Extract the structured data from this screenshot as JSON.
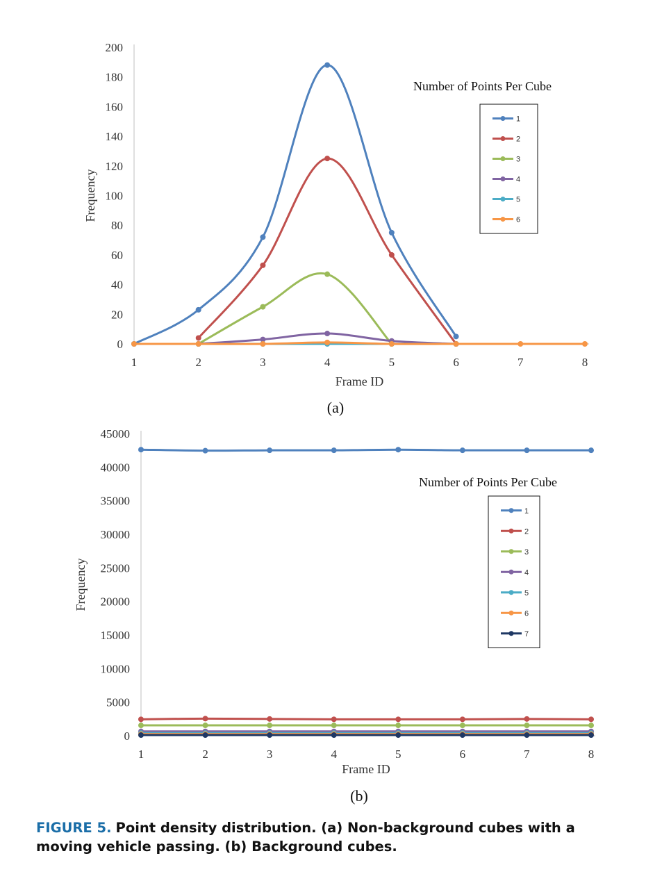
{
  "chart_data": [
    {
      "type": "line",
      "panel_label": "(a)",
      "xlabel": "Frame ID",
      "ylabel": "Frequency",
      "legend_title": "Number of Points Per Cube",
      "legend_position": "top-right",
      "x": [
        1,
        2,
        3,
        4,
        5,
        6,
        7,
        8
      ],
      "ylim": [
        0,
        200
      ],
      "yticks": [
        0,
        20,
        40,
        60,
        80,
        100,
        120,
        140,
        160,
        180,
        200
      ],
      "xticks": [
        1,
        2,
        3,
        4,
        5,
        6,
        7,
        8
      ],
      "grid": false,
      "series": [
        {
          "name": "1",
          "color": "#4f81bd",
          "x": [
            1,
            2,
            3,
            4,
            5,
            6
          ],
          "values": [
            0,
            23,
            72,
            188,
            75,
            5
          ]
        },
        {
          "name": "2",
          "color": "#c0504d",
          "x": [
            2,
            3,
            4,
            5,
            6
          ],
          "values": [
            4,
            53,
            125,
            60,
            0
          ]
        },
        {
          "name": "3",
          "color": "#9bbb59",
          "x": [
            2,
            3,
            4,
            5
          ],
          "values": [
            0,
            25,
            47,
            0
          ]
        },
        {
          "name": "4",
          "color": "#8064a2",
          "x": [
            2,
            3,
            4,
            5,
            6
          ],
          "values": [
            0,
            3,
            7,
            2,
            0
          ]
        },
        {
          "name": "5",
          "color": "#4bacc6",
          "x": [
            1,
            2,
            3,
            4,
            5,
            6
          ],
          "values": [
            0,
            0,
            0,
            0,
            0,
            0
          ]
        },
        {
          "name": "6",
          "color": "#f79646",
          "x": [
            1,
            2,
            3,
            4,
            5,
            6,
            7,
            8
          ],
          "values": [
            0,
            0,
            0,
            1,
            0,
            0,
            0,
            0
          ]
        }
      ]
    },
    {
      "type": "line",
      "panel_label": "(b)",
      "xlabel": "Frame ID",
      "ylabel": "Frequency",
      "legend_title": "Number of Points Per Cube",
      "legend_position": "top-right",
      "x": [
        1,
        2,
        3,
        4,
        5,
        6,
        7,
        8
      ],
      "ylim": [
        0,
        45000
      ],
      "yticks": [
        0,
        5000,
        10000,
        15000,
        20000,
        25000,
        30000,
        35000,
        40000,
        45000
      ],
      "xticks": [
        1,
        2,
        3,
        4,
        5,
        6,
        7,
        8
      ],
      "grid": false,
      "series": [
        {
          "name": "1",
          "color": "#4f81bd",
          "x": [
            1,
            2,
            3,
            4,
            5,
            6,
            7,
            8
          ],
          "values": [
            42600,
            42450,
            42500,
            42500,
            42600,
            42500,
            42500,
            42500
          ]
        },
        {
          "name": "2",
          "color": "#c0504d",
          "x": [
            1,
            2,
            3,
            4,
            5,
            6,
            7,
            8
          ],
          "values": [
            2450,
            2550,
            2500,
            2450,
            2450,
            2450,
            2500,
            2450
          ]
        },
        {
          "name": "3",
          "color": "#9bbb59",
          "x": [
            1,
            2,
            3,
            4,
            5,
            6,
            7,
            8
          ],
          "values": [
            1550,
            1550,
            1550,
            1550,
            1550,
            1550,
            1550,
            1550
          ]
        },
        {
          "name": "4",
          "color": "#8064a2",
          "x": [
            1,
            2,
            3,
            4,
            5,
            6,
            7,
            8
          ],
          "values": [
            650,
            650,
            650,
            650,
            650,
            650,
            650,
            650
          ]
        },
        {
          "name": "5",
          "color": "#4bacc6",
          "x": [
            1,
            2,
            3,
            4,
            5,
            6,
            7,
            8
          ],
          "values": [
            400,
            400,
            400,
            400,
            400,
            400,
            400,
            400
          ]
        },
        {
          "name": "6",
          "color": "#f79646",
          "x": [
            1,
            2,
            3,
            4,
            5,
            6,
            7,
            8
          ],
          "values": [
            250,
            250,
            250,
            250,
            250,
            250,
            250,
            250
          ]
        },
        {
          "name": "7",
          "color": "#1f3864",
          "x": [
            1,
            2,
            3,
            4,
            5,
            6,
            7,
            8
          ],
          "values": [
            100,
            100,
            100,
            100,
            100,
            100,
            100,
            100
          ]
        }
      ]
    }
  ],
  "caption": {
    "label": "FIGURE 5.",
    "text": "Point density distribution. (a) Non-background cubes with a moving vehicle passing. (b) Background cubes."
  }
}
